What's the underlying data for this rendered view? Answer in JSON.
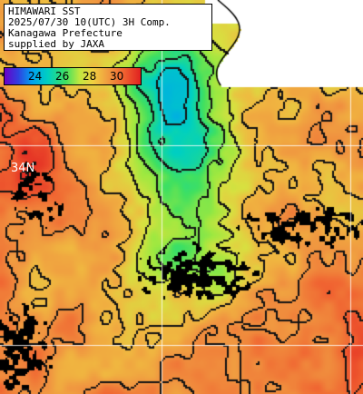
{
  "header": {
    "line1": "HIMAWARI SST",
    "line2": "2025/07/30 10(UTC) 3H Comp.",
    "line3": "Kanagawa Prefecture",
    "line4": "supplied by JAXA"
  },
  "colorbar": {
    "ticks": [
      "24",
      "26",
      "28",
      "30"
    ],
    "unit_range": [
      23,
      31
    ],
    "colors": {
      "low": "#6a00c8",
      "mid": "#40e060",
      "high": "#e02020"
    }
  },
  "map": {
    "lat_labels": [
      "34N"
    ],
    "grid_lines_visible": true,
    "land_color": "#ffffff",
    "cloud_mask_color": "#000000",
    "contour_color": "#000000"
  }
}
